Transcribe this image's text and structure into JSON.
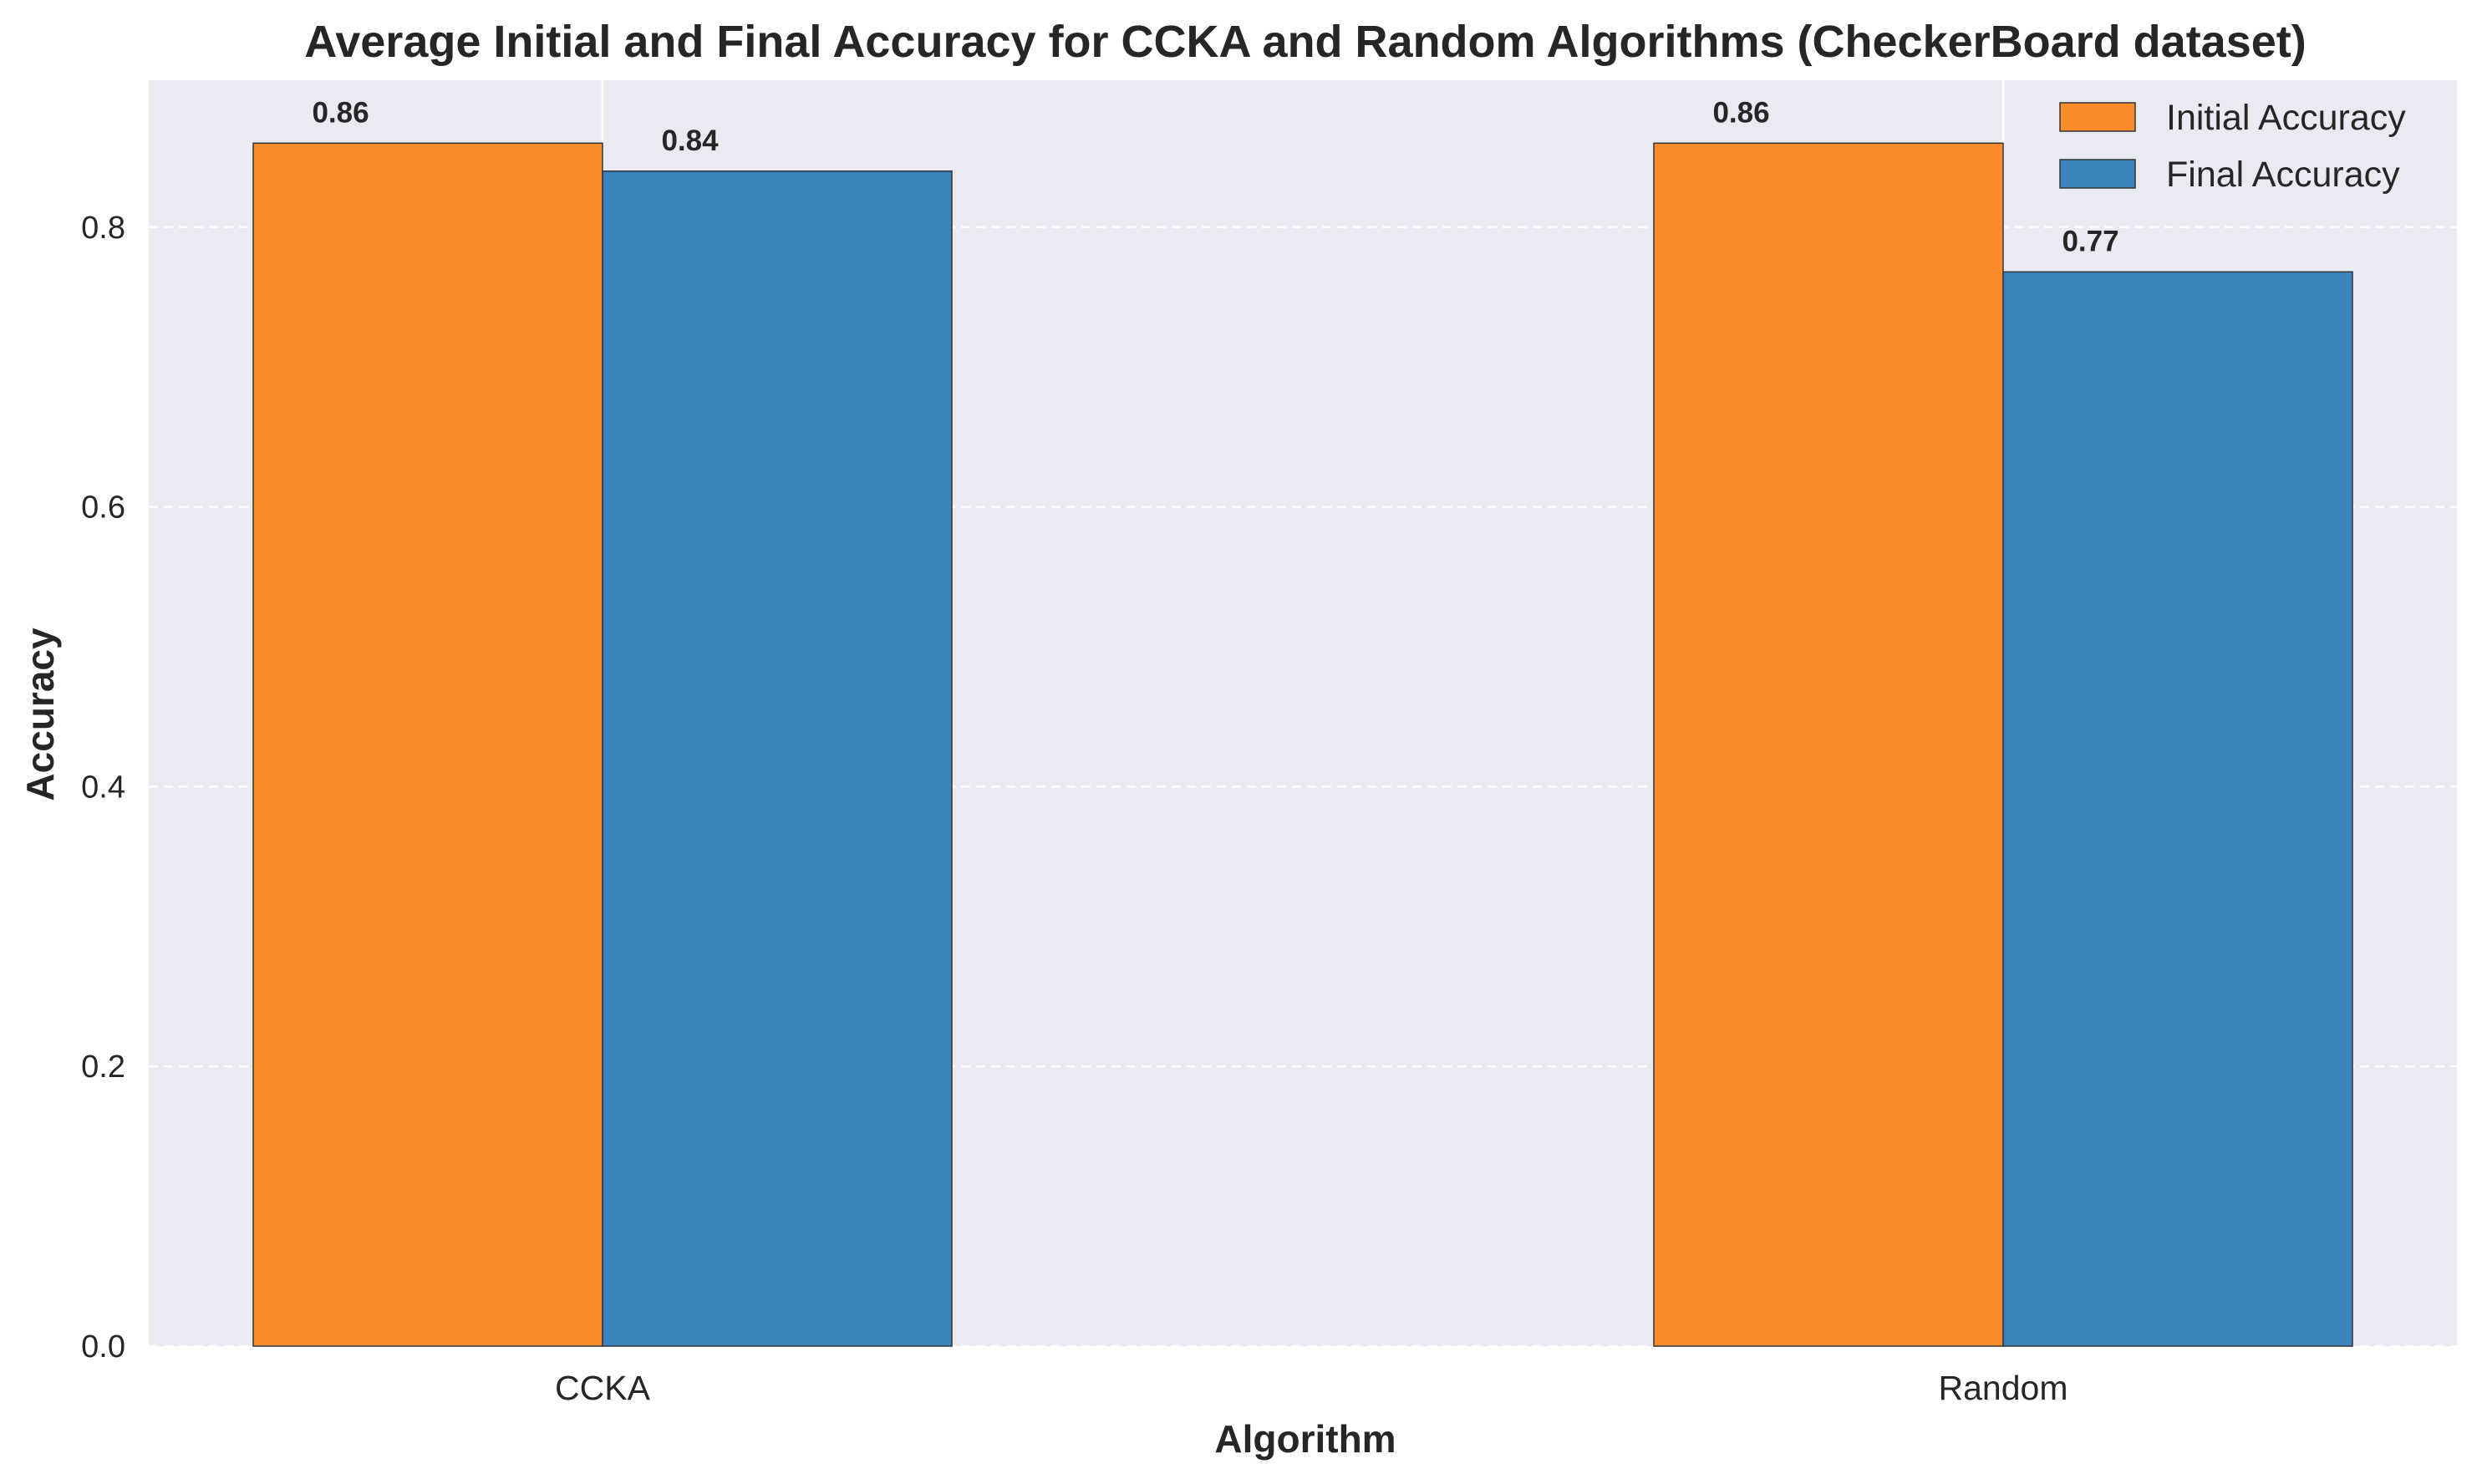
{
  "chart_data": {
    "type": "bar",
    "title": "Average Initial and Final Accuracy for CCKA and Random Algorithms (CheckerBoard dataset)",
    "xlabel": "Algorithm",
    "ylabel": "Accuracy",
    "categories": [
      "CCKA",
      "Random"
    ],
    "series": [
      {
        "name": "Initial Accuracy",
        "values": [
          0.86,
          0.86
        ],
        "labels": [
          "0.86",
          "0.86"
        ],
        "color": "#fb8c2b"
      },
      {
        "name": "Final Accuracy",
        "values": [
          0.84,
          0.768
        ],
        "labels": [
          "0.84",
          "0.77"
        ],
        "color": "#3a84be"
      }
    ],
    "ylim": [
      0,
      0.905
    ],
    "yticks": [
      0.0,
      0.2,
      0.4,
      0.6,
      0.8
    ],
    "ytick_labels": [
      "0.0",
      "0.2",
      "0.4",
      "0.6",
      "0.8"
    ],
    "grid": true,
    "legend_position": "top-right",
    "background_color": "#eaeaf2",
    "grid_color": "#ffffff",
    "edge_color": "#333333"
  }
}
